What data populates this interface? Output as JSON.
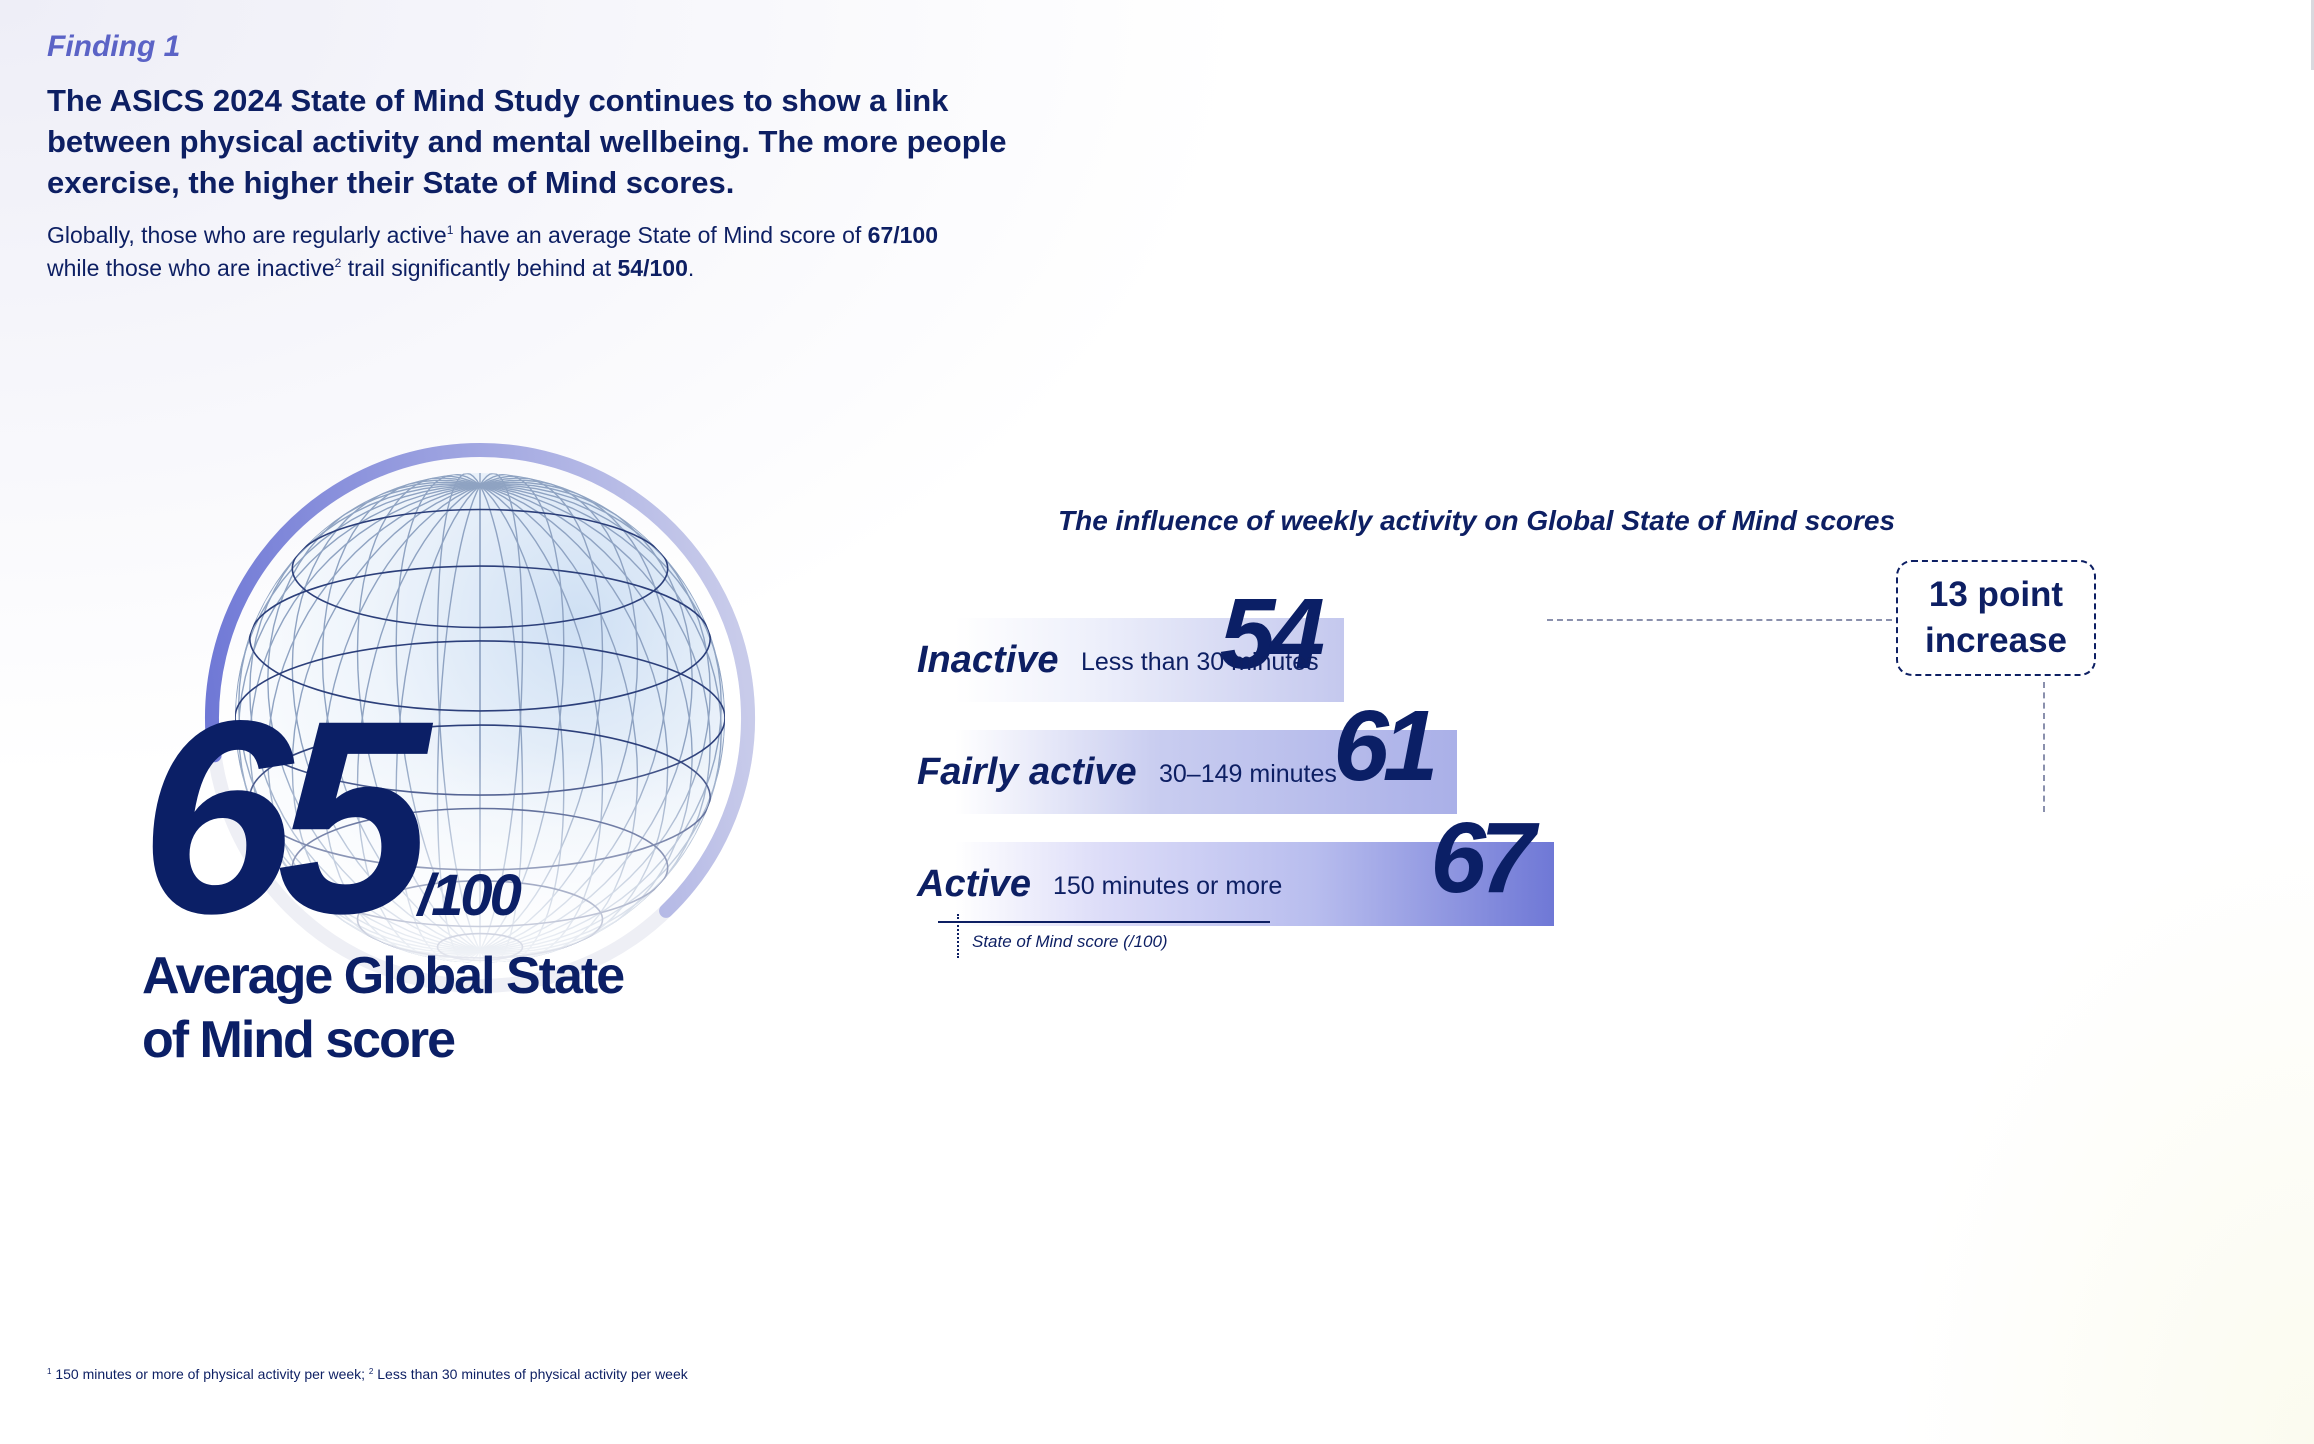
{
  "finding_label": "Finding 1",
  "headline": "The ASICS 2024 State of Mind Study continues to show a link between physical activity and mental wellbeing. The more people exercise, the higher their State of Mind scores.",
  "intro": {
    "p1": "Globally, those who are regularly active",
    "sup1": "1",
    "p2": " have an average State of Mind score of ",
    "active_score": "67/100",
    "p3": "while those who are inactive",
    "sup2": "2",
    "p4": " trail significantly behind at ",
    "inactive_score": "54/100",
    "p5": "."
  },
  "global_score": {
    "value": "65",
    "denominator": "/100",
    "label": "Average Global State of Mind score",
    "ring_fraction": 0.65
  },
  "chart_data": {
    "type": "bar",
    "orientation": "horizontal",
    "title": "The influence of weekly activity on Global State of Mind scores",
    "categories": [
      "Inactive",
      "Fairly active",
      "Active"
    ],
    "descriptions": [
      "Less than 30 minutes",
      "30–149 minutes",
      "150 minutes or more"
    ],
    "values": [
      54,
      61,
      67
    ],
    "value_labels": [
      "54",
      "61",
      "67"
    ],
    "axis_label": "State of Mind score (/100)",
    "annotation": "13 point increase",
    "colors": {
      "bar_light": "#eef0fb",
      "bar_mid": "#aab0e8",
      "bar_dark": "#6f78d6",
      "text": "#0d1f63"
    }
  },
  "footnote": {
    "sup1": "1",
    "text1": " 150 minutes or more of physical activity per week; ",
    "sup2": "2",
    "text2": " Less than 30 minutes of physical activity per week"
  }
}
